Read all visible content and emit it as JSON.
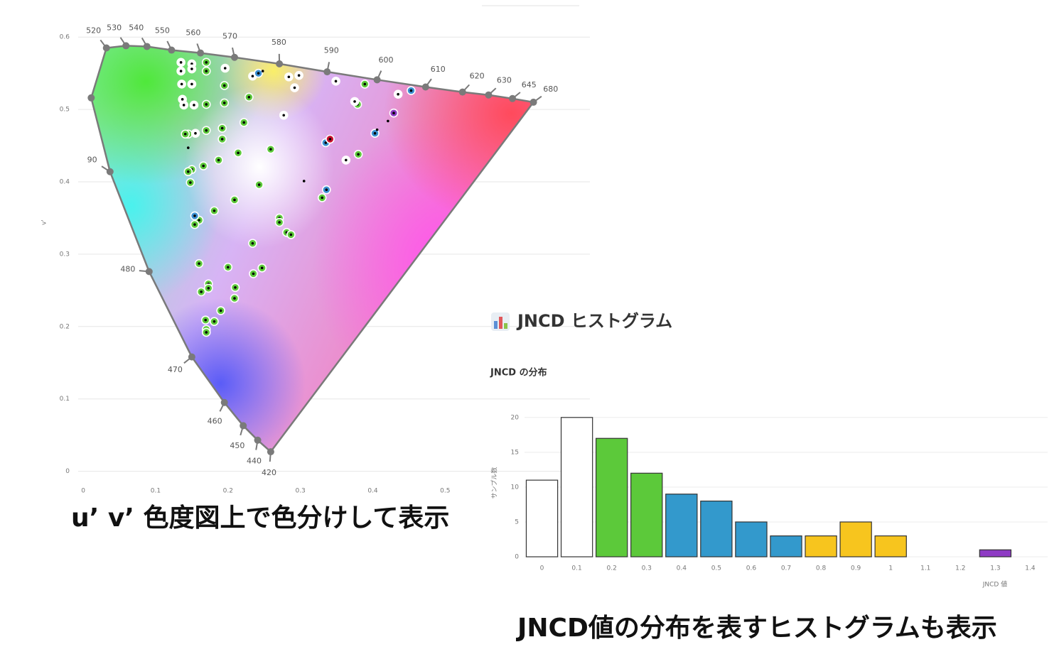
{
  "chart_data": [
    {
      "type": "scatter",
      "y_label": "v'",
      "xlim": [
        -0.007,
        0.7
      ],
      "ylim": [
        -0.02,
        0.61
      ],
      "xticks": [
        0,
        0.1,
        0.2,
        0.3,
        0.4,
        0.5
      ],
      "yticks": [
        0,
        0.1,
        0.2,
        0.3,
        0.4,
        0.5,
        0.6
      ],
      "grid": true,
      "locus": {
        "color": "#7a7a7a",
        "wavelengths": [
          420,
          440,
          450,
          460,
          470,
          480,
          90,
          null,
          520,
          530,
          540,
          550,
          560,
          570,
          580,
          590,
          600,
          610,
          620,
          630,
          645,
          680
        ],
        "u": [
          0.259,
          0.241,
          0.221,
          0.195,
          0.15,
          0.091,
          0.037,
          0.011,
          0.032,
          0.059,
          0.088,
          0.122,
          0.162,
          0.209,
          0.271,
          0.337,
          0.406,
          0.473,
          0.524,
          0.56,
          0.593,
          0.622
        ],
        "v": [
          0.027,
          0.043,
          0.063,
          0.095,
          0.158,
          0.276,
          0.414,
          0.516,
          0.585,
          0.588,
          0.587,
          0.582,
          0.578,
          0.572,
          0.563,
          0.552,
          0.541,
          0.531,
          0.524,
          0.52,
          0.515,
          0.51
        ]
      },
      "series": [
        {
          "color": "#5cc93a",
          "x": [
            0.17,
            0.17,
            0.15,
            0.195,
            0.17,
            0.195,
            0.229,
            0.192,
            0.17,
            0.192,
            0.222,
            0.259,
            0.214,
            0.187,
            0.166,
            0.15,
            0.145,
            0.148,
            0.209,
            0.243,
            0.181,
            0.16,
            0.154,
            0.271,
            0.271,
            0.281,
            0.287,
            0.234,
            0.16,
            0.2,
            0.247,
            0.235,
            0.173,
            0.173,
            0.163,
            0.21,
            0.209,
            0.19,
            0.181,
            0.169,
            0.17,
            0.17,
            0.389,
            0.379,
            0.38,
            0.33,
            0.145,
            0.141
          ],
          "y": [
            0.565,
            0.553,
            0.535,
            0.533,
            0.507,
            0.509,
            0.517,
            0.474,
            0.471,
            0.459,
            0.482,
            0.445,
            0.44,
            0.43,
            0.422,
            0.417,
            0.414,
            0.399,
            0.375,
            0.396,
            0.36,
            0.347,
            0.341,
            0.35,
            0.344,
            0.33,
            0.327,
            0.315,
            0.287,
            0.282,
            0.281,
            0.273,
            0.259,
            0.253,
            0.248,
            0.254,
            0.239,
            0.222,
            0.207,
            0.209,
            0.196,
            0.192,
            0.535,
            0.507,
            0.438,
            0.378,
            0.466,
            0.466
          ]
        },
        {
          "color": "#ffffff",
          "x": [
            0.135,
            0.15,
            0.135,
            0.15,
            0.136,
            0.15,
            0.137,
            0.153,
            0.139,
            0.196,
            0.234,
            0.284,
            0.298,
            0.292,
            0.349,
            0.375,
            0.277,
            0.363,
            0.435,
            0.155
          ],
          "y": [
            0.565,
            0.563,
            0.553,
            0.556,
            0.535,
            0.535,
            0.514,
            0.506,
            0.506,
            0.557,
            0.546,
            0.545,
            0.547,
            0.53,
            0.539,
            0.511,
            0.492,
            0.43,
            0.521,
            0.467
          ]
        },
        {
          "color": "#3a8fd1",
          "x": [
            0.242,
            0.335,
            0.336,
            0.403,
            0.154,
            0.453
          ],
          "y": [
            0.55,
            0.454,
            0.389,
            0.467,
            0.353,
            0.526
          ]
        },
        {
          "color": "#c8102e",
          "x": [
            0.341
          ],
          "y": [
            0.459
          ]
        },
        {
          "color": "#8e3bc4",
          "x": [
            0.429
          ],
          "y": [
            0.495
          ]
        },
        {
          "color": "#000000",
          "x": [
            0.145,
            0.305,
            0.421,
            0.406,
            0.248
          ],
          "y": [
            0.447,
            0.401,
            0.484,
            0.472,
            0.553
          ]
        }
      ]
    },
    {
      "type": "bar",
      "title": "JNCD の分布",
      "x_label": "JNCD 値",
      "y_label": "サンプル数",
      "categories": [
        "0",
        "0.1",
        "0.2",
        "0.3",
        "0.4",
        "0.5",
        "0.6",
        "0.7",
        "0.8",
        "0.9",
        "1",
        "1.1",
        "1.2",
        "1.3",
        "1.4"
      ],
      "values": [
        11,
        20,
        17,
        12,
        9,
        8,
        5,
        3,
        3,
        5,
        3,
        0,
        0,
        1,
        0
      ],
      "colors": [
        "#ffffff",
        "#ffffff",
        "#5cc93a",
        "#5cc93a",
        "#3399cc",
        "#3399cc",
        "#3399cc",
        "#3399cc",
        "#f7c51e",
        "#f7c51e",
        "#f7c51e",
        "#ffffff",
        "#ffffff",
        "#8e3bc4",
        "#ffffff"
      ],
      "ylim": [
        0,
        21
      ],
      "yticks": [
        0,
        5,
        10,
        15,
        20
      ],
      "grid": true
    }
  ],
  "section_title": "JNCD ヒストグラム",
  "captions": [
    "u’ v’ 色度図上で色分けして表示",
    "JNCD値の分布を表すヒストグラムも表示"
  ]
}
